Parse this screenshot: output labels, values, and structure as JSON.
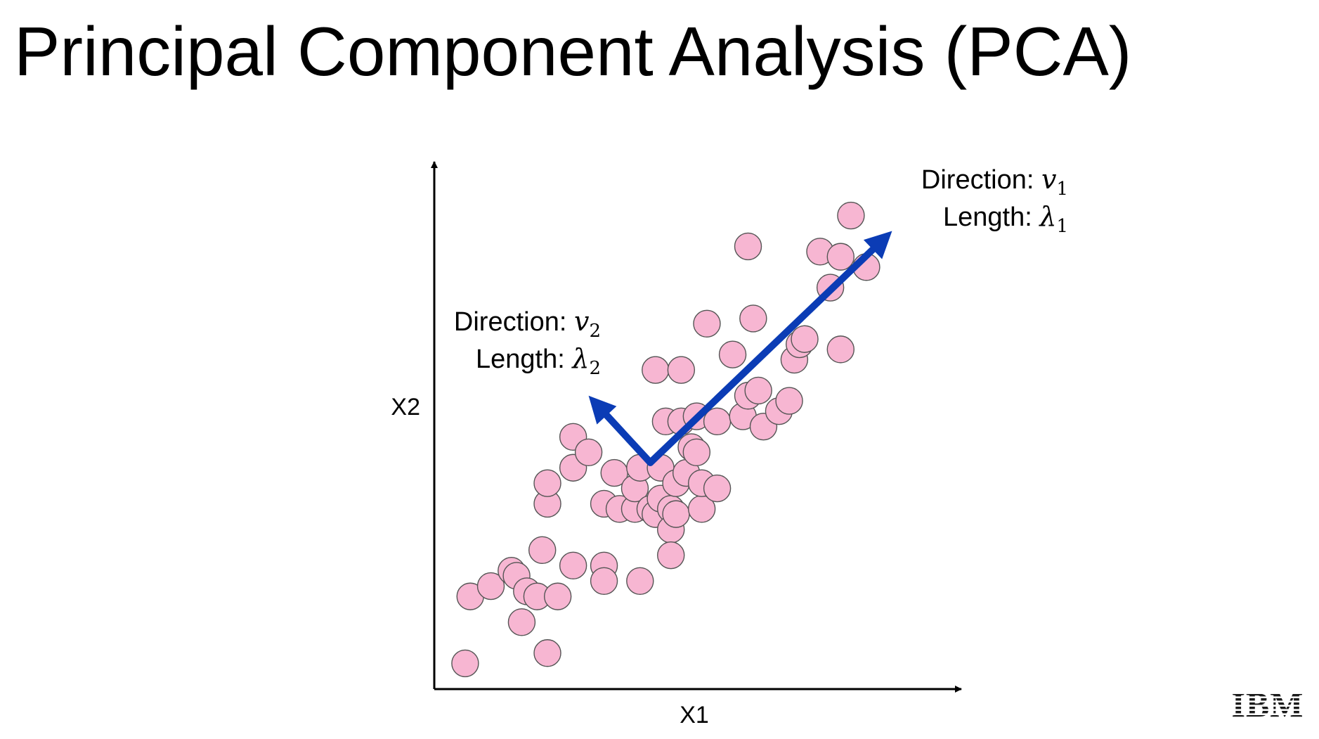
{
  "slide": {
    "title": "Principal Component Analysis (PCA)",
    "logo_text": "IBM"
  },
  "colors": {
    "point_fill": "#f7b6d2",
    "point_stroke": "#555555",
    "vector": "#0b3cb5",
    "axis": "#000000"
  },
  "chart_data": {
    "type": "scatter",
    "title": "",
    "xlabel": "X1",
    "ylabel": "X2",
    "xlim": [
      0,
      100
    ],
    "ylim": [
      0,
      100
    ],
    "grid": false,
    "legend": "none",
    "ticks": "none",
    "series": [
      {
        "values": [
          [
            6,
            5
          ],
          [
            7,
            18
          ],
          [
            11,
            20
          ],
          [
            15,
            23
          ],
          [
            16,
            22
          ],
          [
            17,
            13
          ],
          [
            18,
            19
          ],
          [
            20,
            18
          ],
          [
            22,
            7
          ],
          [
            24,
            18
          ],
          [
            21,
            27
          ],
          [
            22,
            36
          ],
          [
            22,
            40
          ],
          [
            27,
            43
          ],
          [
            27,
            49
          ],
          [
            30,
            46
          ],
          [
            27,
            24
          ],
          [
            33,
            24
          ],
          [
            33,
            21
          ],
          [
            33,
            36
          ],
          [
            35,
            42
          ],
          [
            36,
            35
          ],
          [
            39,
            35
          ],
          [
            39,
            39
          ],
          [
            40,
            43
          ],
          [
            40,
            21
          ],
          [
            42,
            35
          ],
          [
            43,
            34
          ],
          [
            44,
            37
          ],
          [
            44,
            43
          ],
          [
            46,
            35
          ],
          [
            46,
            31
          ],
          [
            47,
            34
          ],
          [
            47,
            40
          ],
          [
            45,
            52
          ],
          [
            43,
            62
          ],
          [
            48,
            62
          ],
          [
            48,
            52
          ],
          [
            50,
            47
          ],
          [
            51,
            53
          ],
          [
            46,
            26
          ],
          [
            49,
            42
          ],
          [
            52,
            35
          ],
          [
            51,
            46
          ],
          [
            52,
            40
          ],
          [
            55,
            39
          ],
          [
            55,
            52
          ],
          [
            53,
            71
          ],
          [
            58,
            65
          ],
          [
            60,
            53
          ],
          [
            61,
            57
          ],
          [
            63,
            58
          ],
          [
            62,
            72
          ],
          [
            64,
            51
          ],
          [
            67,
            54
          ],
          [
            69,
            56
          ],
          [
            70,
            64
          ],
          [
            71,
            67
          ],
          [
            72,
            68
          ],
          [
            79,
            66
          ],
          [
            77,
            78
          ],
          [
            84,
            82
          ],
          [
            75,
            85
          ],
          [
            79,
            84
          ],
          [
            61,
            86
          ],
          [
            81,
            92
          ]
        ]
      }
    ],
    "vectors": [
      {
        "start": [
          42,
          44
        ],
        "end": [
          89,
          89
        ],
        "direction_label": "Direction: ",
        "direction_symbol": "v",
        "direction_subscript": "1",
        "length_label": "Length: ",
        "length_symbol": "λ",
        "length_subscript": "1"
      },
      {
        "start": [
          42,
          44
        ],
        "end": [
          30,
          57
        ],
        "direction_label": "Direction: ",
        "direction_symbol": "v",
        "direction_subscript": "2",
        "length_label": "Length: ",
        "length_symbol": "λ",
        "length_subscript": "2"
      }
    ]
  }
}
